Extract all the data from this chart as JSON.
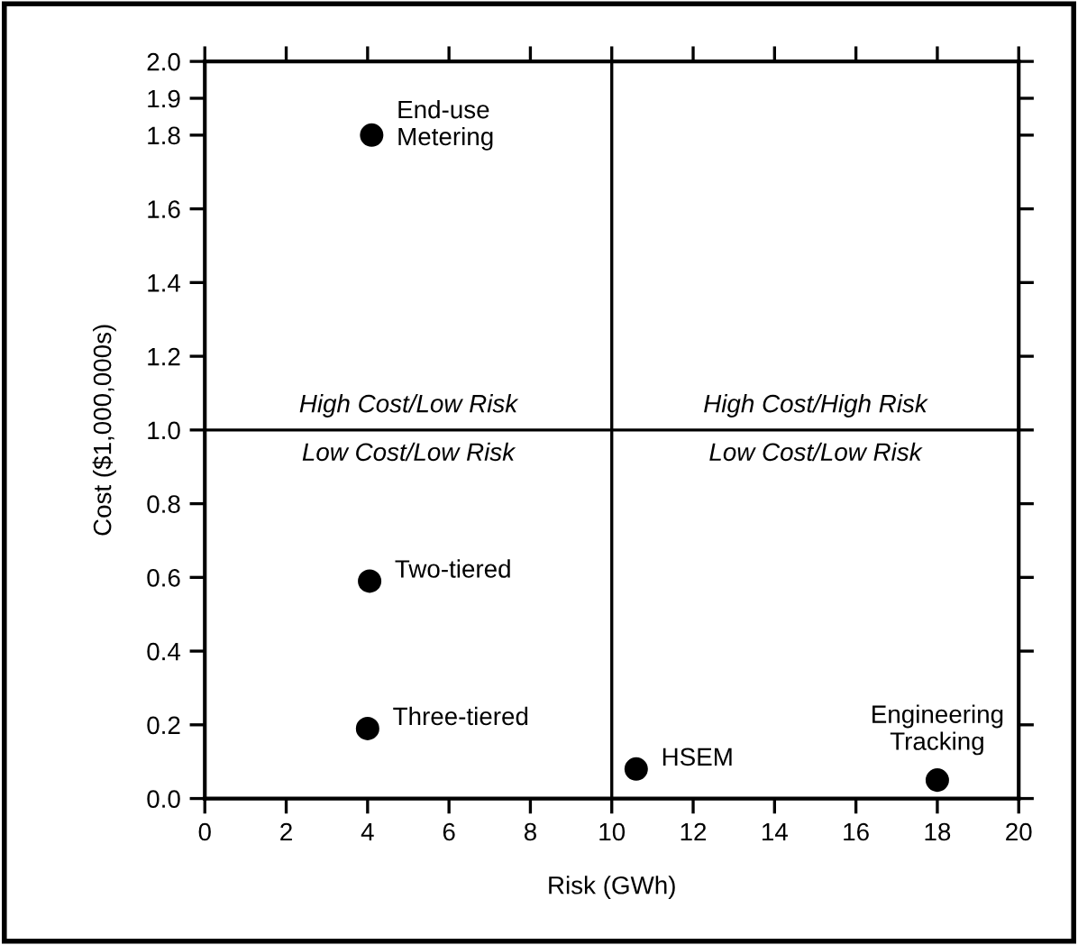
{
  "chart_data": {
    "type": "scatter",
    "xlabel": "Risk (GWh)",
    "ylabel": "Cost ($1,000,000s)",
    "x": [
      4.1,
      4.05,
      4.0,
      10.6,
      18.0
    ],
    "series": [
      {
        "color": "#000000",
        "values": [
          1.8,
          0.59,
          0.19,
          0.08,
          0.05
        ]
      }
    ],
    "marker": "circle",
    "xlim": [
      0,
      20
    ],
    "xticks": [
      0,
      2,
      4,
      6,
      8,
      10,
      12,
      14,
      16,
      18,
      20
    ],
    "ylim": [
      0,
      2
    ],
    "yticks": [
      {
        "value": 0,
        "label": "0.0"
      },
      0.2,
      0.4,
      0.6,
      0.8,
      {
        "value": 1,
        "label": "1.0"
      },
      1.2,
      1.4,
      1.6,
      1.8,
      1.9,
      {
        "value": 2,
        "label": "2.0"
      }
    ],
    "ref_lines": [
      {
        "axis": "x",
        "value": 10,
        "color": "#000000"
      },
      {
        "axis": "y",
        "value": 1,
        "color": "#000000"
      }
    ],
    "grid": false,
    "legend": false,
    "annotations": [
      "High Cost/Low Risk",
      "High Cost/High Risk",
      "Low Cost/Low Risk",
      "Low Cost/Low Risk",
      {
        "text": "End-use\nMetering",
        "x": 4.1,
        "y": 1.8
      },
      {
        "text": "Two-tiered",
        "x": 4.05,
        "y": 0.59
      },
      {
        "text": "Three-tiered",
        "x": 4.0,
        "y": 0.19
      },
      {
        "text": "HSEM",
        "x": 10.6,
        "y": 0.08
      },
      {
        "text": "Engineering\nTracking",
        "x": 18.0,
        "y": 0.05
      }
    ]
  }
}
